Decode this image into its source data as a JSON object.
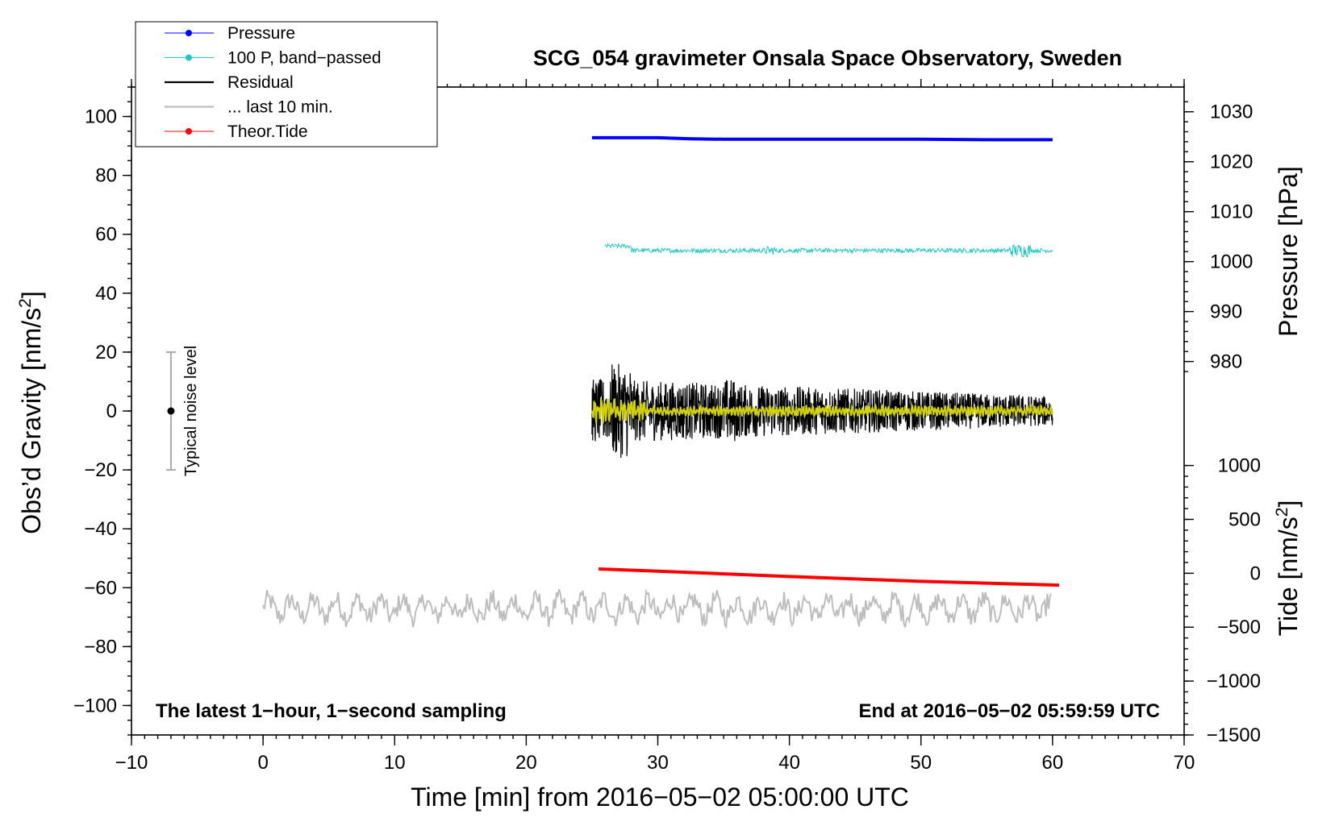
{
  "chart_data": {
    "type": "line",
    "title": "SCG_054 gravimeter Onsala Space Observatory, Sweden",
    "xlabel": "Time [min] from 2016−05−02 05:00:00 UTC",
    "ylabel": "Obs’d Gravity [nm/s",
    "ylabel_sup": "2",
    "ylabel_close": "]",
    "xlim": [
      -10,
      70
    ],
    "ylim": [
      -110,
      110
    ],
    "x_ticks": [
      -10,
      0,
      10,
      20,
      30,
      40,
      50,
      60,
      70
    ],
    "x_tick_labels": [
      "−10",
      "0",
      "10",
      "20",
      "30",
      "40",
      "50",
      "60",
      "70"
    ],
    "y_ticks": [
      -100,
      -80,
      -60,
      -40,
      -20,
      0,
      20,
      40,
      60,
      80,
      100
    ],
    "y_tick_labels": [
      "−100",
      "−80",
      "−60",
      "−40",
      "−20",
      "0",
      "20",
      "40",
      "60",
      "80",
      "100"
    ],
    "pressure_axis": {
      "label": "Pressure [hPa]",
      "ticks": [
        980,
        990,
        1000,
        1010,
        1020,
        1030
      ],
      "tick_labels": [
        "980",
        "990",
        "1000",
        "1010",
        "1020",
        "1030"
      ],
      "gravity_at_980": 16.8,
      "gravity_at_1030": 101.6
    },
    "tide_axis": {
      "label": "Tide [nm/s",
      "label_sup": "2",
      "label_close": "]",
      "ticks": [
        -1500,
        -1000,
        -500,
        0,
        500,
        1000
      ],
      "tick_labels": [
        "−1500",
        "−1000",
        "−500",
        "0",
        "500",
        "1000"
      ],
      "gravity_at_minus1500": -110,
      "gravity_at_1000": -18.5
    },
    "grid": false,
    "legend_position": "top-left, outside",
    "legend": [
      {
        "label": "Pressure",
        "color": "#0000ff",
        "marker": "dot"
      },
      {
        "label": "100 P, band−passed",
        "color": "#20c8c8",
        "marker": "dot"
      },
      {
        "label": "Residual",
        "color": "#000000",
        "marker": "none"
      },
      {
        "label": "... last 10 min.",
        "color": "#bdbdbd",
        "marker": "none"
      },
      {
        "label": "Theor.Tide",
        "color": "#ff0000",
        "marker": "dot"
      }
    ],
    "series": [
      {
        "name": "Pressure",
        "color": "#0000ff",
        "units": "hPa",
        "x": [
          25,
          30,
          32.5,
          35,
          40,
          45,
          50,
          55,
          60
        ],
        "values": [
          1024.8,
          1024.8,
          1024.6,
          1024.5,
          1024.5,
          1024.5,
          1024.5,
          1024.4,
          1024.4
        ]
      },
      {
        "name": "100 P, band−passed",
        "color": "#20c8c8",
        "units": "nm/s2",
        "x_start": 26,
        "x_end": 60,
        "mean": 54.5,
        "amplitude": 1.5
      },
      {
        "name": "Residual",
        "color": "#000000",
        "units": "nm/s2",
        "x_start": 25,
        "x_end": 60,
        "mean": 0,
        "amplitude_start": 11,
        "amplitude_end": 5,
        "min": -19,
        "max": 16
      },
      {
        "name": "Residual, smoothed",
        "color": "#d2d200",
        "units": "nm/s2",
        "x_start": 25,
        "x_end": 60,
        "mean": 0,
        "amplitude": 2
      },
      {
        "name": "... last 10 min.",
        "color": "#bdbdbd",
        "units": "nm/s2",
        "x_start": 0,
        "x_end": 60,
        "mean": -67,
        "amplitude": 5
      },
      {
        "name": "Theor.Tide",
        "color": "#ff0000",
        "units": "nm/s2",
        "x": [
          25.5,
          30,
          40,
          50,
          60.5
        ],
        "values": [
          40,
          20,
          -30,
          -75,
          -110
        ]
      }
    ],
    "annotations": {
      "noise_bar": {
        "x": -7,
        "y_center": 0,
        "y_low": -20,
        "y_high": 20,
        "label": "Typical noise level"
      },
      "bottom_left": "The latest 1−hour, 1−second sampling",
      "bottom_right": "End at 2016−05−02 05:59:59 UTC"
    }
  }
}
